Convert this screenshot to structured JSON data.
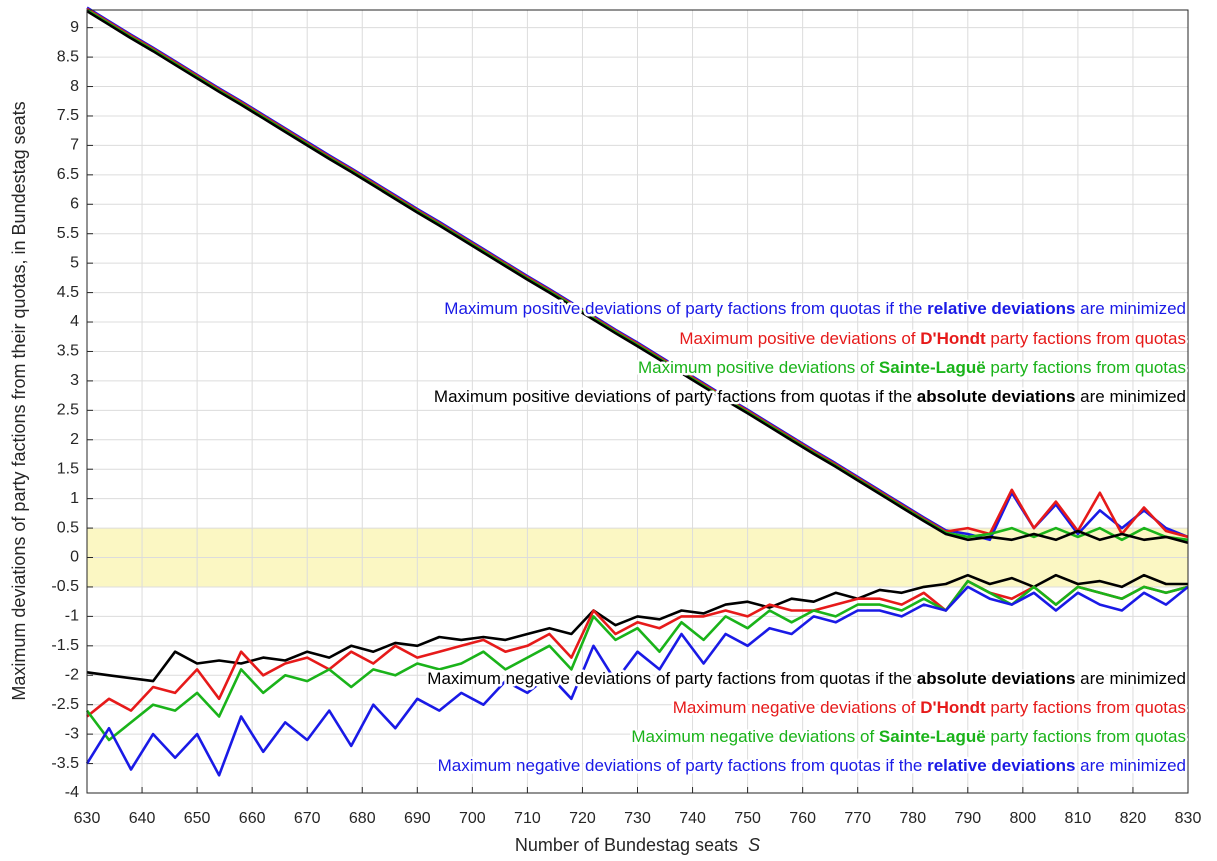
{
  "chart_data": {
    "type": "line",
    "ylabel": "Maximum deviations of party factions from their quotas, in Bundestag seats",
    "xlabel": [
      {
        "text": "Number of Bundestag seats  ",
        "italic": false
      },
      {
        "text": "S",
        "italic": true
      }
    ],
    "xlim": [
      630,
      830
    ],
    "ylim": [
      -4,
      9.3
    ],
    "xticks": [
      630,
      640,
      650,
      660,
      670,
      680,
      690,
      700,
      710,
      720,
      730,
      740,
      750,
      760,
      770,
      780,
      790,
      800,
      810,
      820,
      830
    ],
    "yticks": [
      -4,
      -3.5,
      -3,
      -2.5,
      -2,
      -1.5,
      -1,
      -0.5,
      0,
      0.5,
      1,
      1.5,
      2,
      2.5,
      3,
      3.5,
      4,
      4.5,
      5,
      5.5,
      6,
      6.5,
      7,
      7.5,
      8,
      8.5,
      9
    ],
    "grid": true,
    "band": {
      "range": [
        -0.5,
        0.5
      ],
      "color": "#fbf7c3"
    },
    "x": [
      630,
      634,
      638,
      642,
      646,
      650,
      654,
      658,
      662,
      666,
      670,
      674,
      678,
      682,
      686,
      690,
      694,
      698,
      702,
      706,
      710,
      714,
      718,
      722,
      726,
      730,
      734,
      738,
      742,
      746,
      750,
      754,
      758,
      762,
      766,
      770,
      774,
      778,
      782,
      786,
      790,
      794,
      798,
      802,
      806,
      810,
      814,
      818,
      822,
      826,
      830
    ],
    "series": [
      {
        "name": [
          {
            "text": "Maximum positive deviations of party factions from quotas if the ",
            "bold": false
          },
          {
            "text": "relative deviations",
            "bold": true
          },
          {
            "text": " are minimized",
            "bold": false
          }
        ],
        "color": "#1a1ae6",
        "values": [
          9.34,
          9.11,
          8.88,
          8.66,
          8.43,
          8.2,
          7.97,
          7.75,
          7.52,
          7.29,
          7.06,
          6.83,
          6.61,
          6.38,
          6.15,
          5.92,
          5.7,
          5.47,
          5.24,
          5.01,
          4.78,
          4.56,
          4.33,
          4.1,
          3.87,
          3.65,
          3.42,
          3.19,
          2.96,
          2.73,
          2.51,
          2.28,
          2.05,
          1.82,
          1.6,
          1.37,
          1.14,
          0.91,
          0.68,
          0.46,
          0.4,
          0.3,
          1.1,
          0.5,
          0.9,
          0.4,
          0.8,
          0.5,
          0.8,
          0.5,
          0.35
        ]
      },
      {
        "name": [
          {
            "text": "Maximum positive deviations of ",
            "bold": false
          },
          {
            "text": "D'Hondt",
            "bold": true
          },
          {
            "text": " party factions from quotas",
            "bold": false
          }
        ],
        "color": "#e61a1a",
        "values": [
          9.32,
          9.09,
          8.86,
          8.64,
          8.41,
          8.18,
          7.95,
          7.73,
          7.5,
          7.27,
          7.04,
          6.81,
          6.59,
          6.36,
          6.13,
          5.9,
          5.68,
          5.45,
          5.22,
          4.99,
          4.76,
          4.54,
          4.31,
          4.08,
          3.85,
          3.63,
          3.4,
          3.17,
          2.94,
          2.71,
          2.49,
          2.26,
          2.03,
          1.8,
          1.58,
          1.35,
          1.12,
          0.89,
          0.66,
          0.44,
          0.5,
          0.4,
          1.15,
          0.5,
          0.95,
          0.45,
          1.1,
          0.4,
          0.85,
          0.45,
          0.35
        ]
      },
      {
        "name": [
          {
            "text": "Maximum positive deviations of ",
            "bold": false
          },
          {
            "text": "Sainte-Laguë",
            "bold": true
          },
          {
            "text": " party factions from quotas",
            "bold": false
          }
        ],
        "color": "#1ab31a",
        "values": [
          9.3,
          9.07,
          8.84,
          8.62,
          8.39,
          8.16,
          7.93,
          7.71,
          7.48,
          7.25,
          7.02,
          6.79,
          6.57,
          6.34,
          6.11,
          5.88,
          5.66,
          5.43,
          5.2,
          4.97,
          4.74,
          4.52,
          4.29,
          4.06,
          3.83,
          3.61,
          3.38,
          3.15,
          2.92,
          2.69,
          2.47,
          2.24,
          2.01,
          1.78,
          1.56,
          1.33,
          1.1,
          0.87,
          0.64,
          0.42,
          0.35,
          0.4,
          0.5,
          0.35,
          0.5,
          0.35,
          0.5,
          0.3,
          0.5,
          0.35,
          0.3
        ]
      },
      {
        "name": [
          {
            "text": "Maximum positive deviations of party factions from quotas if the ",
            "bold": false
          },
          {
            "text": "absolute deviations",
            "bold": true
          },
          {
            "text": " are minimized",
            "bold": false
          }
        ],
        "color": "#000000",
        "values": [
          9.28,
          9.05,
          8.82,
          8.6,
          8.37,
          8.14,
          7.91,
          7.69,
          7.46,
          7.23,
          7.0,
          6.77,
          6.55,
          6.32,
          6.09,
          5.86,
          5.64,
          5.41,
          5.18,
          4.95,
          4.72,
          4.5,
          4.27,
          4.04,
          3.81,
          3.59,
          3.36,
          3.13,
          2.9,
          2.67,
          2.45,
          2.22,
          1.99,
          1.76,
          1.54,
          1.31,
          1.08,
          0.85,
          0.62,
          0.4,
          0.3,
          0.35,
          0.3,
          0.4,
          0.3,
          0.45,
          0.3,
          0.4,
          0.3,
          0.35,
          0.25
        ]
      },
      {
        "name": [
          {
            "text": "Maximum negative deviations of party factions from quotas if the ",
            "bold": false
          },
          {
            "text": "absolute deviations",
            "bold": true
          },
          {
            "text": " are minimized",
            "bold": false
          }
        ],
        "color": "#000000",
        "values": [
          -1.95,
          -2.0,
          -2.05,
          -2.1,
          -1.6,
          -1.8,
          -1.75,
          -1.8,
          -1.7,
          -1.75,
          -1.6,
          -1.7,
          -1.5,
          -1.6,
          -1.45,
          -1.5,
          -1.35,
          -1.4,
          -1.35,
          -1.4,
          -1.3,
          -1.2,
          -1.3,
          -0.9,
          -1.15,
          -1.0,
          -1.05,
          -0.9,
          -0.95,
          -0.8,
          -0.75,
          -0.85,
          -0.7,
          -0.75,
          -0.6,
          -0.7,
          -0.55,
          -0.6,
          -0.5,
          -0.45,
          -0.3,
          -0.45,
          -0.35,
          -0.5,
          -0.3,
          -0.45,
          -0.4,
          -0.5,
          -0.3,
          -0.45,
          -0.45
        ]
      },
      {
        "name": [
          {
            "text": "Maximum negative deviations of ",
            "bold": false
          },
          {
            "text": "D'Hondt",
            "bold": true
          },
          {
            "text": " party factions from quotas",
            "bold": false
          }
        ],
        "color": "#e61a1a",
        "values": [
          -2.7,
          -2.4,
          -2.6,
          -2.2,
          -2.3,
          -1.9,
          -2.4,
          -1.6,
          -2.0,
          -1.8,
          -1.7,
          -1.9,
          -1.6,
          -1.8,
          -1.5,
          -1.7,
          -1.6,
          -1.5,
          -1.4,
          -1.6,
          -1.5,
          -1.3,
          -1.7,
          -0.9,
          -1.3,
          -1.1,
          -1.2,
          -1.0,
          -1.0,
          -0.9,
          -1.0,
          -0.8,
          -0.9,
          -0.9,
          -0.8,
          -0.7,
          -0.7,
          -0.8,
          -0.6,
          -0.9,
          -0.4,
          -0.6,
          -0.7,
          -0.5,
          -0.8,
          -0.5,
          -0.6,
          -0.7,
          -0.5,
          -0.6,
          -0.5
        ]
      },
      {
        "name": [
          {
            "text": "Maximum negative deviations of ",
            "bold": false
          },
          {
            "text": "Sainte-Laguë",
            "bold": true
          },
          {
            "text": " party factions from quotas",
            "bold": false
          }
        ],
        "color": "#1ab31a",
        "values": [
          -2.6,
          -3.1,
          -2.8,
          -2.5,
          -2.6,
          -2.3,
          -2.7,
          -1.9,
          -2.3,
          -2.0,
          -2.1,
          -1.9,
          -2.2,
          -1.9,
          -2.0,
          -1.8,
          -1.9,
          -1.8,
          -1.6,
          -1.9,
          -1.7,
          -1.5,
          -1.9,
          -1.0,
          -1.4,
          -1.2,
          -1.6,
          -1.1,
          -1.4,
          -1.0,
          -1.2,
          -0.9,
          -1.1,
          -0.9,
          -1.0,
          -0.8,
          -0.8,
          -0.9,
          -0.7,
          -0.9,
          -0.4,
          -0.6,
          -0.8,
          -0.5,
          -0.8,
          -0.5,
          -0.6,
          -0.7,
          -0.5,
          -0.6,
          -0.5
        ]
      },
      {
        "name": [
          {
            "text": "Maximum negative deviations of party factions from quotas if the ",
            "bold": false
          },
          {
            "text": "relative deviations",
            "bold": true
          },
          {
            "text": " are minimized",
            "bold": false
          }
        ],
        "color": "#1a1ae6",
        "values": [
          -3.5,
          -2.9,
          -3.6,
          -3.0,
          -3.4,
          -3.0,
          -3.7,
          -2.7,
          -3.3,
          -2.8,
          -3.1,
          -2.6,
          -3.2,
          -2.5,
          -2.9,
          -2.4,
          -2.6,
          -2.3,
          -2.5,
          -2.1,
          -2.3,
          -2.0,
          -2.4,
          -1.5,
          -2.1,
          -1.6,
          -1.9,
          -1.3,
          -1.8,
          -1.3,
          -1.5,
          -1.2,
          -1.3,
          -1.0,
          -1.1,
          -0.9,
          -0.9,
          -1.0,
          -0.8,
          -0.9,
          -0.5,
          -0.7,
          -0.8,
          -0.6,
          -0.9,
          -0.6,
          -0.8,
          -0.9,
          -0.6,
          -0.8,
          -0.5
        ]
      }
    ]
  }
}
